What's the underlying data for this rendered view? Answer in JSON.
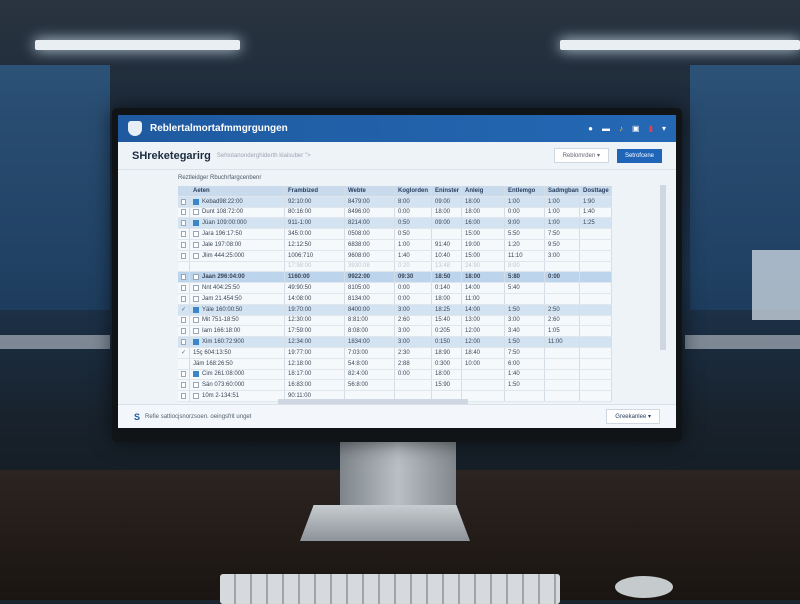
{
  "app": {
    "title": "Reblertalmortafmmgrgungen",
    "header_icons": [
      "chat-icon",
      "camera-icon",
      "bell-icon",
      "save-icon",
      "alert-icon",
      "user-menu-icon"
    ]
  },
  "page": {
    "title": "SHreketegarirg",
    "breadcrumb": "Sehiotanonderghiderth klaisuber \">",
    "select_label": "Reblomrden ▾",
    "primary_button": "Setrofcene"
  },
  "table": {
    "label": "Reztleidger Rbuchrfargcenbenr",
    "columns": [
      "Aeten",
      "Frambized",
      "Webte",
      "Koglorden",
      "Eninster",
      "Anleig",
      "Entlemgo",
      "Sadmgbans",
      "Dosttage"
    ],
    "rows": [
      {
        "style": "hl",
        "check": false,
        "icon": true,
        "cells": [
          "Kebad98:22:00",
          "92:10:00",
          "8479:00",
          "8:00",
          "09:00",
          "18:00",
          "1:00",
          "1:00",
          "1:90"
        ]
      },
      {
        "style": "",
        "check": false,
        "icon": false,
        "cells": [
          "Dunt 108:72:00",
          "80:16:00",
          "8496:00",
          "0:00",
          "18:00",
          "18:00",
          "0:00",
          "1:00",
          "1:40"
        ]
      },
      {
        "style": "hl",
        "check": false,
        "icon": true,
        "cells": [
          "Jüan 109:00:000",
          "911-1:00",
          "8214:00",
          "0:50",
          "09:00",
          "16:00",
          "9:00",
          "1:00",
          "1:25"
        ]
      },
      {
        "style": "",
        "check": false,
        "icon": false,
        "cells": [
          "Jara 196:17:50",
          "345:0:00",
          "0508:00",
          "0:50",
          "",
          "15:00",
          "5:50",
          "7:50",
          ""
        ]
      },
      {
        "style": "",
        "check": false,
        "icon": false,
        "cells": [
          "Jale 197:08:00",
          "12:12:50",
          "6838:00",
          "1:00",
          "91:40",
          "19:00",
          "1:20",
          "9:50",
          ""
        ]
      },
      {
        "style": "",
        "check": false,
        "icon": false,
        "cells": [
          "Jlim 444:25:000",
          "1006:710",
          "9608:00",
          "1:40",
          "10:40",
          "15:00",
          "11:10",
          "3:00",
          ""
        ]
      },
      {
        "style": "faded",
        "check": null,
        "icon": null,
        "cells": [
          "",
          "17:98:00",
          "3930:08",
          "0:20",
          "13:48",
          "24:90",
          "8:00",
          "",
          ""
        ]
      },
      {
        "style": "hl2",
        "check": false,
        "icon": false,
        "cells": [
          "Jaan 296:04:00",
          "1160:00",
          "9922:00",
          "09:30",
          "18:50",
          "18:00",
          "5:80",
          "0:00",
          ""
        ]
      },
      {
        "style": "",
        "check": false,
        "icon": false,
        "cells": [
          "Nnt 404:25:50",
          "49:90:50",
          "8105:00",
          "0:00",
          "0:140",
          "14:00",
          "5:40",
          "",
          ""
        ]
      },
      {
        "style": "",
        "check": false,
        "icon": false,
        "cells": [
          "Jam 21.454:50",
          "14:08:00",
          "8134:00",
          "0:00",
          "18:00",
          "11:00",
          "",
          "",
          ""
        ]
      },
      {
        "style": "hl",
        "check": true,
        "icon": true,
        "cells": [
          "Yäle 160:00:50",
          "19:70:00",
          "8400:00",
          "3:00",
          "18:25",
          "14:00",
          "1:50",
          "2:50",
          ""
        ]
      },
      {
        "style": "",
        "check": false,
        "icon": false,
        "cells": [
          "Mit 751-18:50",
          "12:30:00",
          "8:81:00",
          "2:60",
          "15:40",
          "13:00",
          "3:00",
          "2:60",
          ""
        ]
      },
      {
        "style": "",
        "check": false,
        "icon": false,
        "cells": [
          "Iam 166:18:00",
          "17:59:00",
          "8:08:00",
          "3:00",
          "0:205",
          "12:00",
          "3:40",
          "1:05",
          ""
        ]
      },
      {
        "style": "hl",
        "check": false,
        "icon": true,
        "cells": [
          "Xim 160:72:900",
          "12:34:00",
          "1834:00",
          "3:00",
          "0:150",
          "12:00",
          "1:50",
          "11:00",
          ""
        ]
      },
      {
        "style": "",
        "check": true,
        "icon": null,
        "cells": [
          "15ç 604:13:50",
          "19:77:00",
          "7:03:00",
          "2:30",
          "18:90",
          "18:40",
          "7:50",
          "",
          ""
        ]
      },
      {
        "style": "",
        "check": null,
        "icon": null,
        "cells": [
          "Jäm 168:26:50",
          "12:18:00",
          "54:8:00",
          "2:88",
          "0:300",
          "10:00",
          "6:00",
          "",
          ""
        ]
      },
      {
        "style": "",
        "check": false,
        "icon": true,
        "cells": [
          "Cim 261:08:000",
          "18:17:00",
          "82:4:00",
          "0:00",
          "18:00",
          "",
          "1:40",
          "",
          ""
        ]
      },
      {
        "style": "",
        "check": false,
        "icon": false,
        "cells": [
          "Sän 073:60:000",
          "16:83:00",
          "56:8:00",
          "",
          "15:90",
          "",
          "1:50",
          "",
          ""
        ]
      },
      {
        "style": "",
        "check": false,
        "icon": false,
        "cells": [
          "10m 2-134:51",
          "90:11:00",
          "",
          "",
          "",
          "",
          "",
          "",
          ""
        ]
      }
    ]
  },
  "footer": {
    "status": "Refie sattiocjsnorzsoen. oeingsfrit unget",
    "button": "Greekanlee ▾"
  }
}
